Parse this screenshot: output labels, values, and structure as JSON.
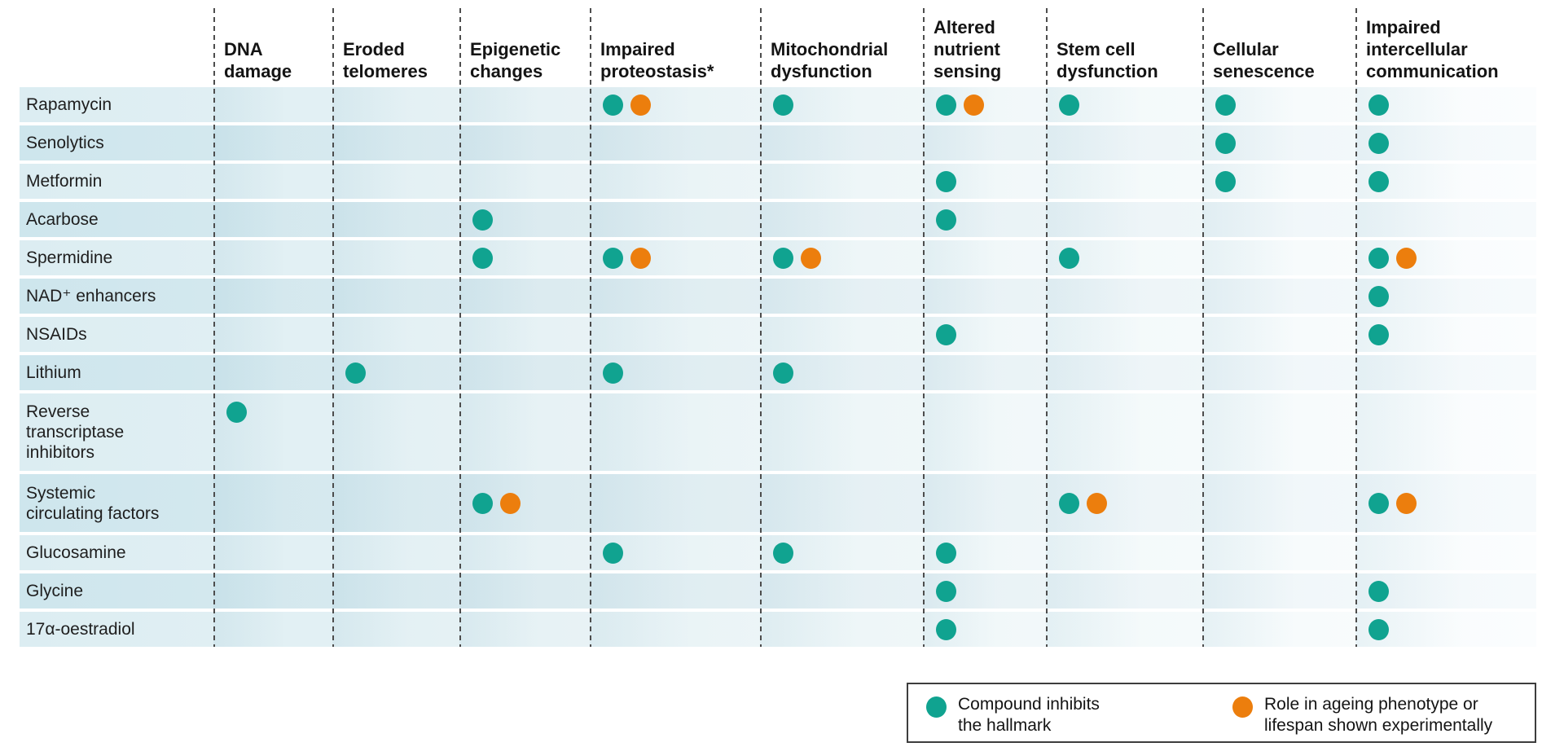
{
  "legend": {
    "items": [
      {
        "key": "inhibits",
        "color": "#10A390",
        "label": "Compound inhibits\nthe hallmark"
      },
      {
        "key": "experimental_role",
        "color": "#EC7E0D",
        "label": "Role in ageing phenotype or\nlifespan shown experimentally"
      }
    ]
  },
  "chart_data": {
    "type": "table",
    "title": "",
    "columns": [
      "DNA\ndamage",
      "Eroded\ntelomeres",
      "Epigenetic\nchanges",
      "Impaired\nproteostasis*",
      "Mitochondrial\ndysfunction",
      "Altered\nnutrient\nsensing",
      "Stem cell\ndysfunction",
      "Cellular\nsenescence",
      "Impaired\nintercellular\ncommunication"
    ],
    "legend_note": "inhibits = teal dot (compound inhibits the hallmark); experimental_role = orange dot (role in ageing phenotype or lifespan shown experimentally)",
    "rows": [
      {
        "label": "Rapamycin",
        "cells": [
          [],
          [],
          [],
          [
            "inhibits",
            "experimental_role"
          ],
          [
            "inhibits"
          ],
          [
            "inhibits",
            "experimental_role"
          ],
          [
            "inhibits"
          ],
          [
            "inhibits"
          ],
          [
            "inhibits"
          ]
        ]
      },
      {
        "label": "Senolytics",
        "cells": [
          [],
          [],
          [],
          [],
          [],
          [],
          [],
          [
            "inhibits"
          ],
          [
            "inhibits"
          ]
        ]
      },
      {
        "label": "Metformin",
        "cells": [
          [],
          [],
          [],
          [],
          [],
          [
            "inhibits"
          ],
          [],
          [
            "inhibits"
          ],
          [
            "inhibits"
          ]
        ]
      },
      {
        "label": "Acarbose",
        "cells": [
          [],
          [],
          [
            "inhibits"
          ],
          [],
          [],
          [
            "inhibits"
          ],
          [],
          [],
          []
        ]
      },
      {
        "label": "Spermidine",
        "cells": [
          [],
          [],
          [
            "inhibits"
          ],
          [
            "inhibits",
            "experimental_role"
          ],
          [
            "inhibits",
            "experimental_role"
          ],
          [],
          [
            "inhibits"
          ],
          [],
          [
            "inhibits",
            "experimental_role"
          ]
        ]
      },
      {
        "label": "NAD⁺ enhancers",
        "cells": [
          [],
          [],
          [],
          [],
          [],
          [],
          [],
          [],
          [
            "inhibits"
          ]
        ]
      },
      {
        "label": "NSAIDs",
        "cells": [
          [],
          [],
          [],
          [],
          [],
          [
            "inhibits"
          ],
          [],
          [],
          [
            "inhibits"
          ]
        ]
      },
      {
        "label": "Lithium",
        "cells": [
          [],
          [
            "inhibits"
          ],
          [],
          [
            "inhibits"
          ],
          [
            "inhibits"
          ],
          [],
          [],
          [],
          []
        ]
      },
      {
        "label": "Reverse\ntranscriptase\ninhibitors",
        "cells": [
          [
            "inhibits"
          ],
          [],
          [],
          [],
          [],
          [],
          [],
          [],
          []
        ]
      },
      {
        "label": "Systemic\ncirculating factors",
        "cells": [
          [],
          [],
          [
            "inhibits",
            "experimental_role"
          ],
          [],
          [],
          [],
          [
            "inhibits",
            "experimental_role"
          ],
          [],
          [
            "inhibits",
            "experimental_role"
          ]
        ]
      },
      {
        "label": "Glucosamine",
        "cells": [
          [],
          [],
          [],
          [
            "inhibits"
          ],
          [
            "inhibits"
          ],
          [
            "inhibits"
          ],
          [],
          [],
          []
        ]
      },
      {
        "label": "Glycine",
        "cells": [
          [],
          [],
          [],
          [],
          [],
          [
            "inhibits"
          ],
          [],
          [],
          [
            "inhibits"
          ]
        ]
      },
      {
        "label": "17α-oestradiol",
        "cells": [
          [],
          [],
          [],
          [],
          [],
          [
            "inhibits"
          ],
          [],
          [],
          [
            "inhibits"
          ]
        ]
      }
    ]
  }
}
